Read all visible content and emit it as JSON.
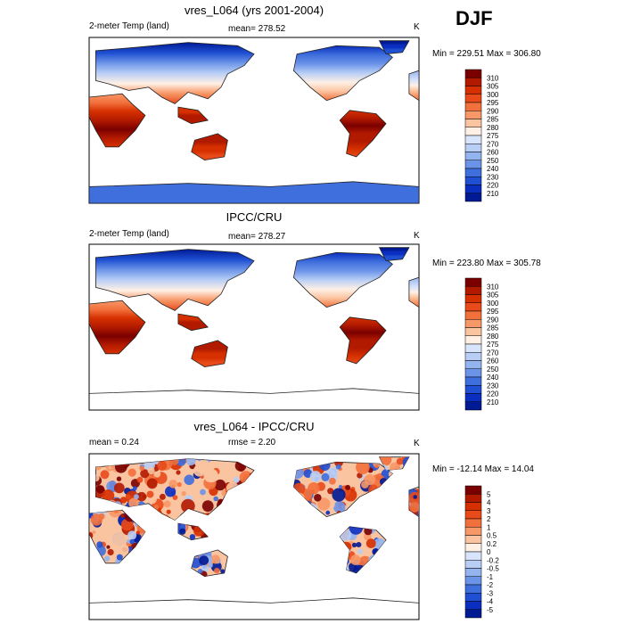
{
  "season_label": "DJF",
  "panels": [
    {
      "title": "vres_L064 (yrs 2001-2004)",
      "left_label": "2-meter Temp (land)",
      "center_label": "mean= 278.52",
      "units": "K",
      "minmax": "Min = 229.51 Max = 306.80",
      "colorbar_labels": [
        "310",
        "305",
        "300",
        "295",
        "290",
        "285",
        "280",
        "275",
        "270",
        "260",
        "250",
        "240",
        "230",
        "220",
        "210"
      ]
    },
    {
      "title": "IPCC/CRU",
      "left_label": "2-meter Temp (land)",
      "center_label": "mean= 278.27",
      "units": "K",
      "minmax": "Min = 223.80 Max = 305.78",
      "colorbar_labels": [
        "310",
        "305",
        "300",
        "295",
        "290",
        "285",
        "280",
        "275",
        "270",
        "260",
        "250",
        "240",
        "230",
        "220",
        "210"
      ]
    },
    {
      "title": "vres_L064 - IPCC/CRU",
      "left_label": "mean =   0.24",
      "center_label": "rmse =   2.20",
      "units": "K",
      "minmax": "Min = -12.14 Max =  14.04",
      "colorbar_labels": [
        "5",
        "4",
        "3",
        "2",
        "1",
        "0.5",
        "0.2",
        "0",
        "-0.2",
        "-0.5",
        "-1",
        "-2",
        "-3",
        "-4",
        "-5"
      ]
    }
  ],
  "chart_data": [
    {
      "type": "heatmap",
      "title": "vres_L064 (yrs 2001-2004)",
      "variable": "2-meter Temp (land)",
      "units": "K",
      "mean": 278.52,
      "min": 229.51,
      "max": 306.8,
      "colorbar_levels": [
        310,
        305,
        300,
        295,
        290,
        285,
        280,
        275,
        270,
        260,
        250,
        240,
        230,
        220,
        210
      ],
      "colors": [
        "#7a0000",
        "#b21a00",
        "#d63000",
        "#e84a1a",
        "#f2703c",
        "#f79868",
        "#fbc4a0",
        "#fff0e6",
        "#d8e4fb",
        "#b8cef5",
        "#94b4ef",
        "#6b93e8",
        "#3f6fdd",
        "#1f4fd2",
        "#0a2fc0",
        "#001a94"
      ]
    },
    {
      "type": "heatmap",
      "title": "IPCC/CRU",
      "variable": "2-meter Temp (land)",
      "units": "K",
      "mean": 278.27,
      "min": 223.8,
      "max": 305.78,
      "colorbar_levels": [
        310,
        305,
        300,
        295,
        290,
        285,
        280,
        275,
        270,
        260,
        250,
        240,
        230,
        220,
        210
      ],
      "colors": [
        "#7a0000",
        "#b21a00",
        "#d63000",
        "#e84a1a",
        "#f2703c",
        "#f79868",
        "#fbc4a0",
        "#fff0e6",
        "#d8e4fb",
        "#b8cef5",
        "#94b4ef",
        "#6b93e8",
        "#3f6fdd",
        "#1f4fd2",
        "#0a2fc0",
        "#001a94"
      ]
    },
    {
      "type": "heatmap",
      "title": "vres_L064 - IPCC/CRU",
      "units": "K",
      "mean": 0.24,
      "rmse": 2.2,
      "min": -12.14,
      "max": 14.04,
      "colorbar_levels": [
        5,
        4,
        3,
        2,
        1,
        0.5,
        0.2,
        0,
        -0.2,
        -0.5,
        -1,
        -2,
        -3,
        -4,
        -5
      ],
      "colors": [
        "#7a0000",
        "#b21a00",
        "#d63000",
        "#e84a1a",
        "#f2703c",
        "#f79868",
        "#fbc4a0",
        "#fff0e6",
        "#d8e4fb",
        "#b8cef5",
        "#94b4ef",
        "#6b93e8",
        "#3f6fdd",
        "#1f4fd2",
        "#0a2fc0",
        "#001a94"
      ]
    }
  ]
}
